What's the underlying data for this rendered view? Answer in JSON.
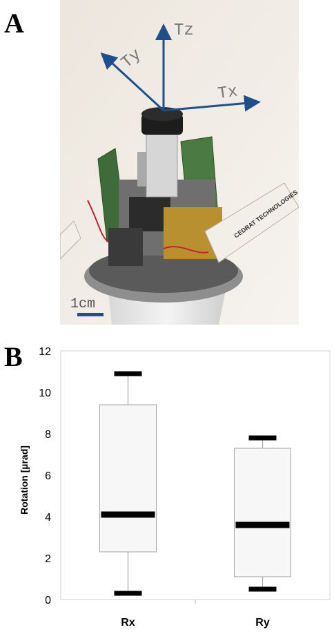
{
  "panels": {
    "a": "A",
    "b": "B"
  },
  "photo": {
    "axes": {
      "tx": "Tx",
      "ty": "Ty",
      "tz": "Tz"
    },
    "scale_bar": "1cm",
    "label_text": "CEDRAT TECHNOLOGIES"
  },
  "chart_data": {
    "type": "box",
    "categories": [
      "Rx",
      "Ry"
    ],
    "ylabel": "Rotation [µrad]",
    "ylim": [
      0,
      12
    ],
    "yticks": [
      0,
      2,
      4,
      6,
      8,
      10,
      12
    ],
    "boxes": [
      {
        "category": "Rx",
        "min": 0.3,
        "q1": 2.3,
        "median": 4.1,
        "q3": 9.4,
        "max": 10.9
      },
      {
        "category": "Ry",
        "min": 0.5,
        "q1": 1.1,
        "median": 3.6,
        "q3": 7.3,
        "max": 7.8
      }
    ],
    "grid": false,
    "colors": {
      "box_fill": "#f7f7f7",
      "box_stroke": "#a6a6a6",
      "median": "#000000"
    }
  }
}
